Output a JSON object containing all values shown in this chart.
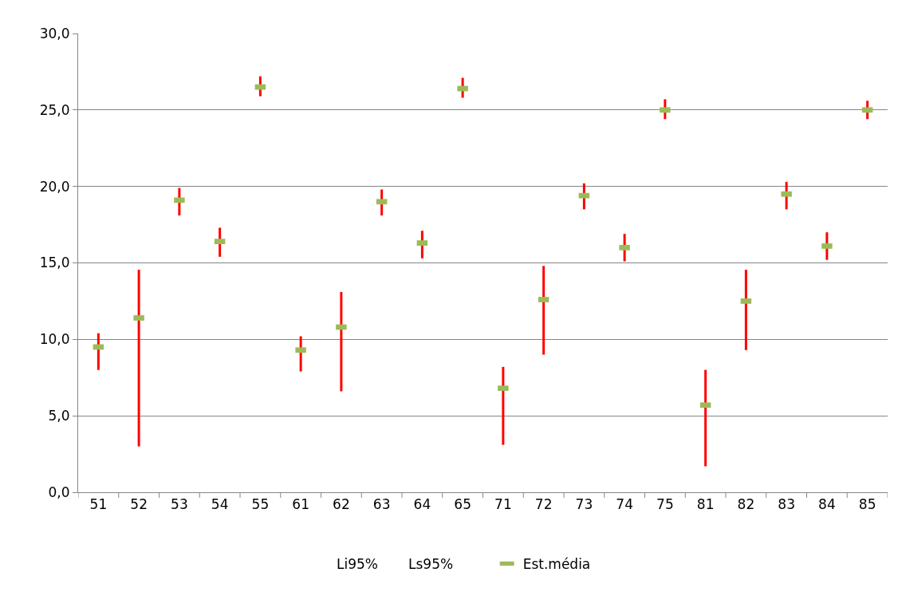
{
  "chart_data": {
    "type": "scatter",
    "categories": [
      "51",
      "52",
      "53",
      "54",
      "55",
      "61",
      "62",
      "63",
      "64",
      "65",
      "71",
      "72",
      "73",
      "74",
      "75",
      "81",
      "82",
      "83",
      "84",
      "85"
    ],
    "series": [
      {
        "name": "Est.média",
        "color": "#9bbb59",
        "values": [
          9.5,
          11.4,
          19.1,
          16.4,
          26.5,
          9.3,
          10.8,
          19.0,
          16.3,
          26.4,
          6.8,
          12.6,
          19.4,
          16.0,
          25.0,
          5.7,
          12.5,
          19.5,
          16.1,
          25.0
        ],
        "errors": [
          [
            8.0,
            10.4
          ],
          [
            3.0,
            14.55
          ],
          [
            18.1,
            19.9
          ],
          [
            15.4,
            17.3
          ],
          [
            25.9,
            27.2
          ],
          [
            7.9,
            10.2
          ],
          [
            6.6,
            13.1
          ],
          [
            18.1,
            19.8
          ],
          [
            15.3,
            17.1
          ],
          [
            25.8,
            27.1
          ],
          [
            3.1,
            8.2
          ],
          [
            9.0,
            14.8
          ],
          [
            18.5,
            20.2
          ],
          [
            15.1,
            16.9
          ],
          [
            24.4,
            25.7
          ],
          [
            1.7,
            8.0
          ],
          [
            9.3,
            14.55
          ],
          [
            18.5,
            20.3
          ],
          [
            15.2,
            17.0
          ],
          [
            24.4,
            25.6
          ]
        ]
      }
    ],
    "annotations": [
      "Li95%",
      "Ls95%"
    ],
    "ylim": [
      0,
      30
    ],
    "yticks": [
      {
        "value": 0,
        "label": "0,0"
      },
      {
        "value": 5,
        "label": "5,0"
      },
      {
        "value": 10,
        "label": "10,0"
      },
      {
        "value": 15,
        "label": "15,0"
      },
      {
        "value": 20,
        "label": "20,0"
      },
      {
        "value": 25,
        "label": "25,0"
      },
      {
        "value": 30,
        "label": "30,0"
      }
    ],
    "grid": "y",
    "legend": "bottom"
  }
}
